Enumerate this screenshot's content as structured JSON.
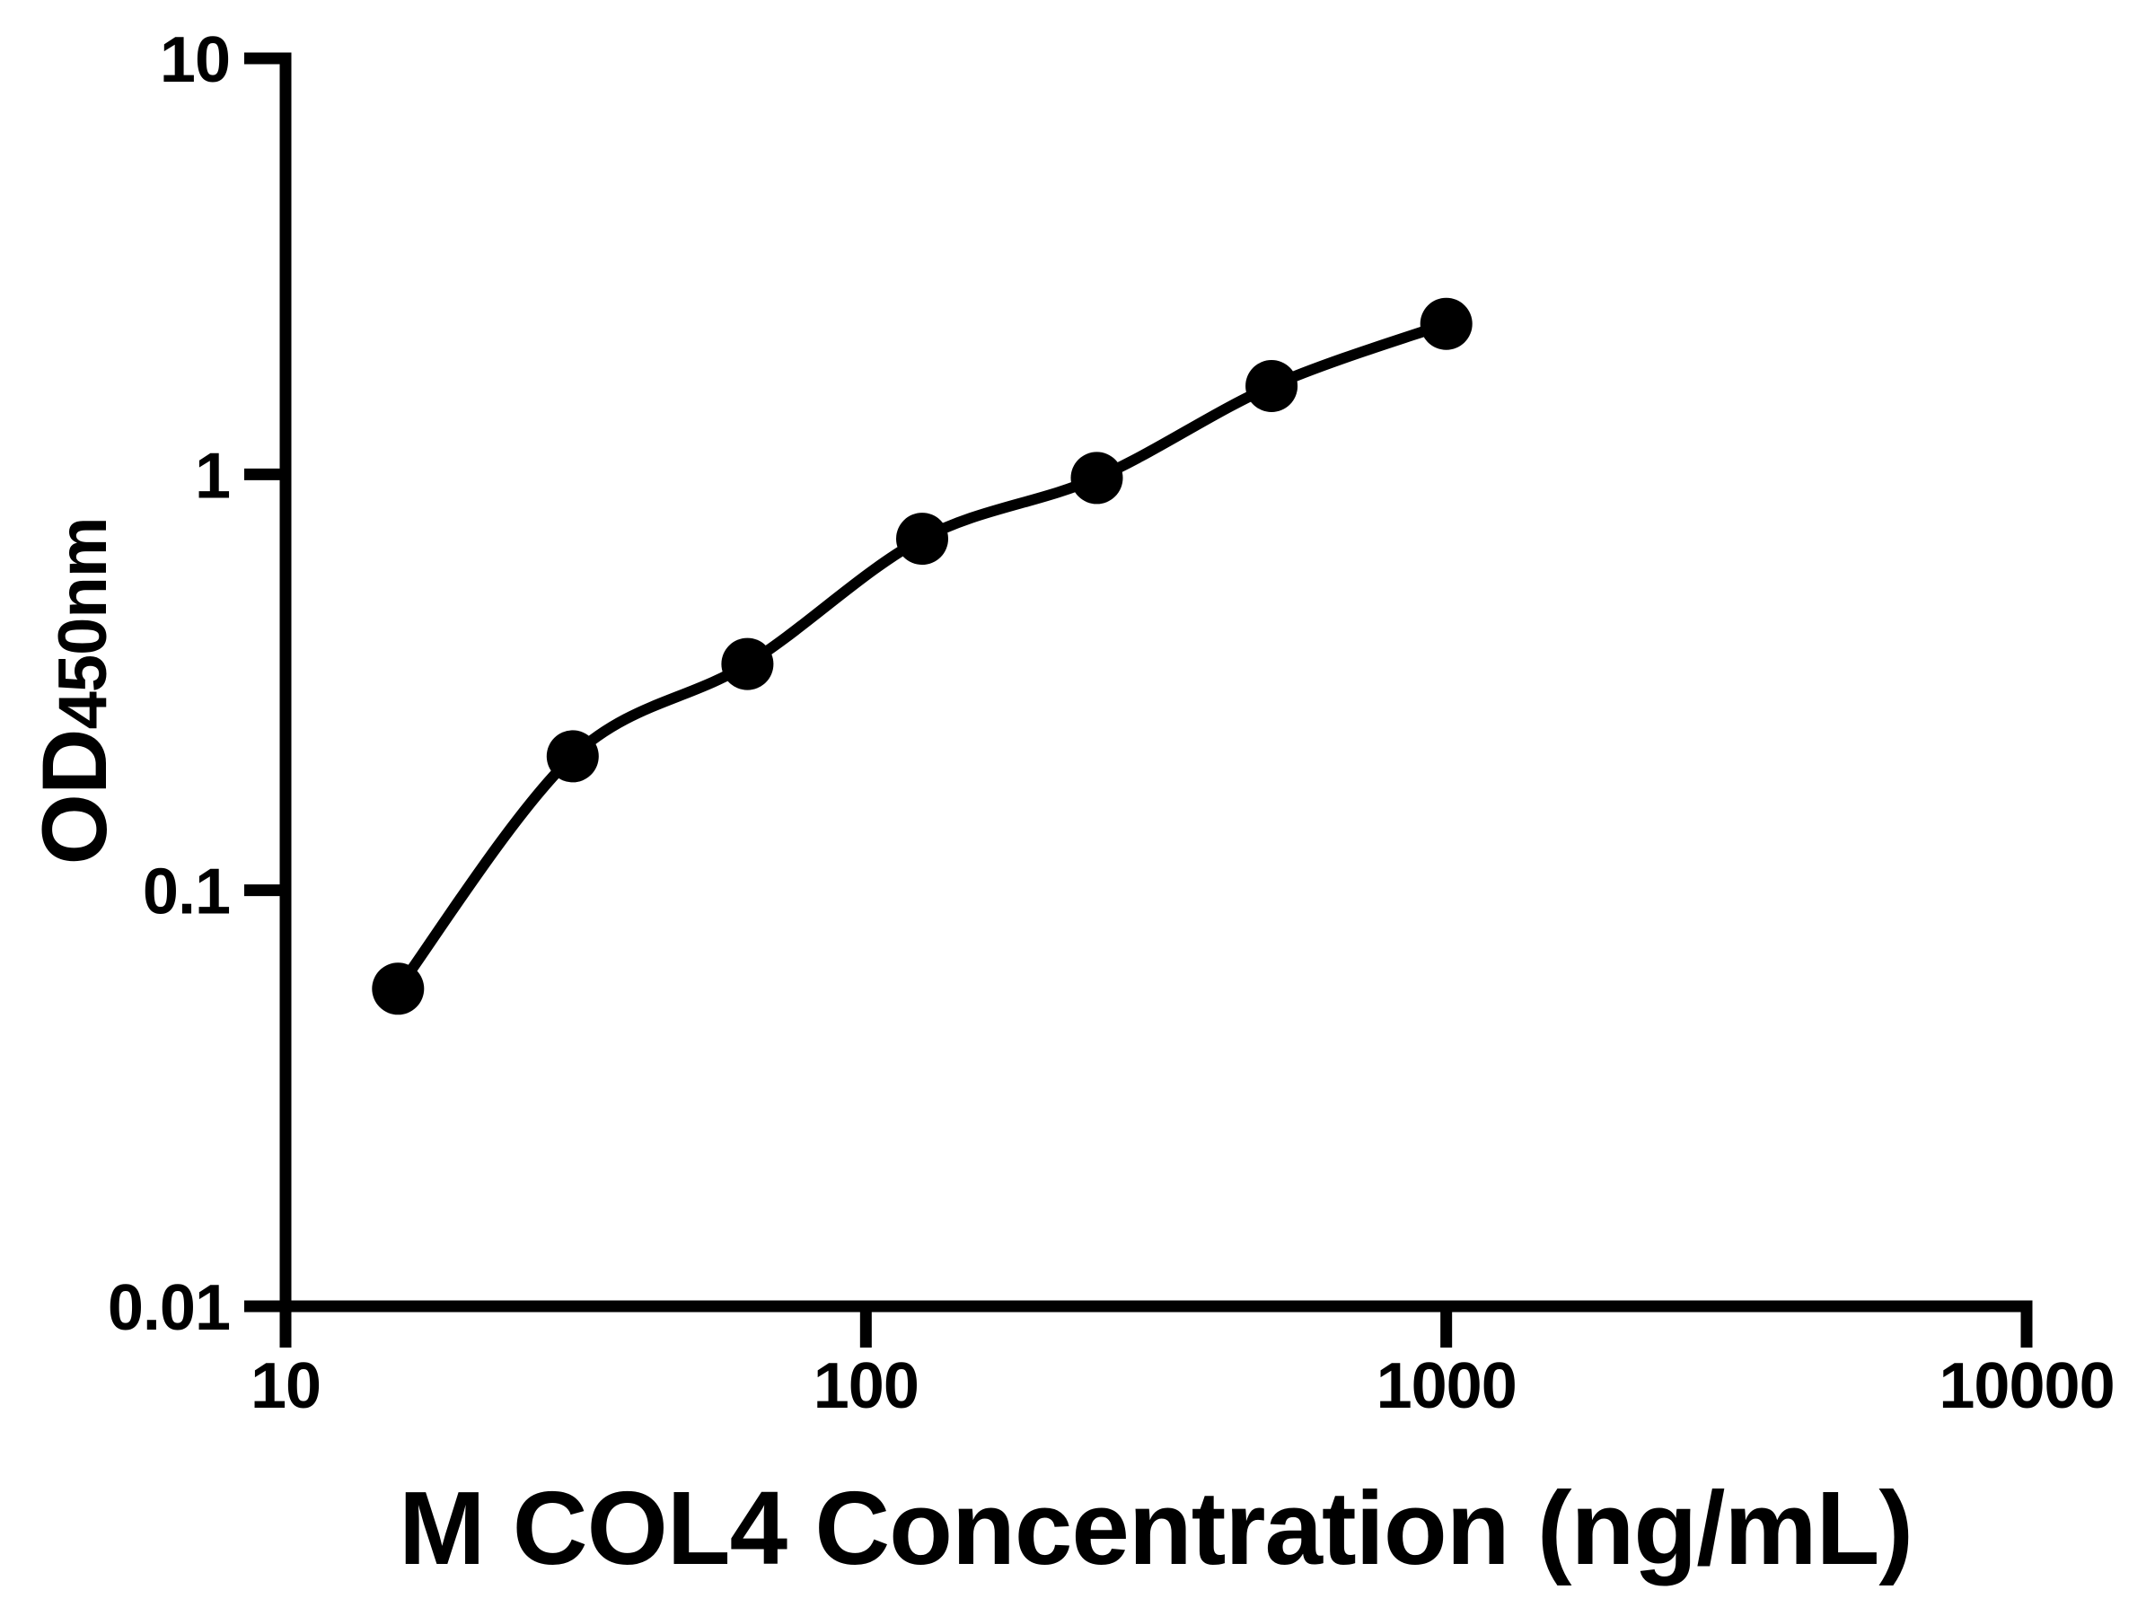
{
  "figure": {
    "background_color": "#ffffff",
    "ink_color": "#000000"
  },
  "chart_data": {
    "type": "scatter",
    "title": "",
    "xlabel": "M COL4 Concentration (ng/mL)",
    "ylabel": "OD450nm",
    "ylabel_main": "OD",
    "ylabel_sub": "450nm",
    "x_scale": "log",
    "y_scale": "log",
    "xlim": [
      10,
      10000
    ],
    "ylim": [
      0.01,
      10
    ],
    "x_tick_labels": [
      "10",
      "100",
      "1000",
      "10000"
    ],
    "y_tick_labels": [
      "10",
      "1",
      "0.1",
      "0.01"
    ],
    "grid": false,
    "legend": false,
    "series": [
      {
        "marker": "filled-circle",
        "marker_color": "#000000",
        "line_color": "#000000",
        "fit_curve_through_points": true,
        "x": [
          15.625,
          31.25,
          62.5,
          125,
          250,
          500,
          1000
        ],
        "y": [
          0.058,
          0.21,
          0.35,
          0.7,
          0.98,
          1.63,
          2.3
        ]
      }
    ]
  }
}
